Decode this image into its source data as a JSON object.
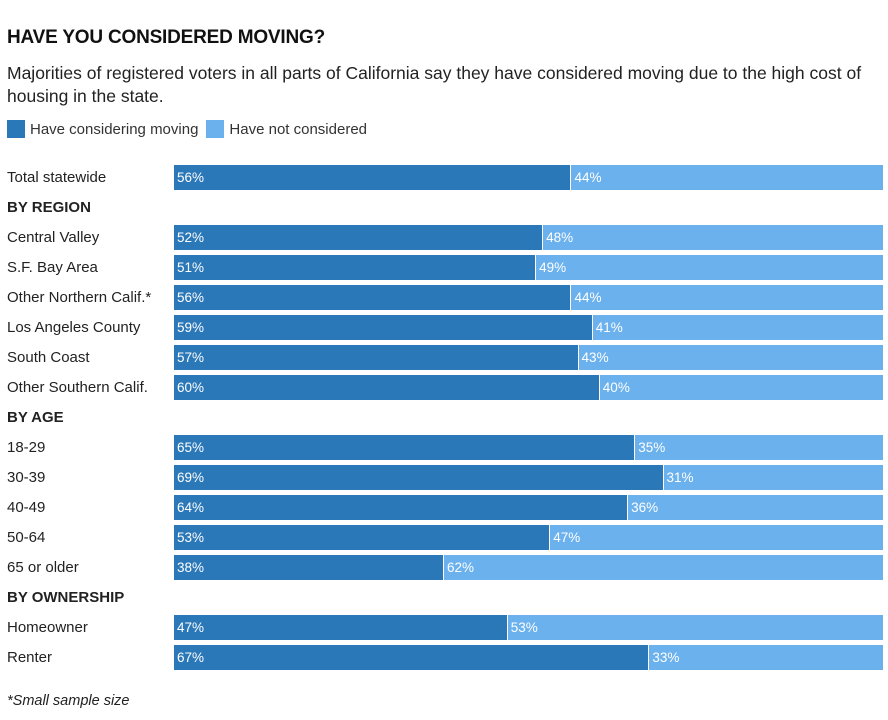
{
  "header": {
    "title": "HAVE YOU CONSIDERED MOVING?",
    "subtitle": "Majorities of registered voters in all parts of California say they have considered moving due to the high cost of housing in the state."
  },
  "legend": [
    {
      "label": "Have considering moving",
      "color": "#2b78b8"
    },
    {
      "label": "Have not considered",
      "color": "#6bb1ee"
    }
  ],
  "footnote": "*Small sample size",
  "chart_data": {
    "type": "bar",
    "orientation": "horizontal",
    "stacked": true,
    "value_suffix": "%",
    "xlim": [
      0,
      100
    ],
    "grid": false,
    "legend_position": "top-left",
    "series": [
      {
        "name": "Have considering moving",
        "color": "#2b78b8"
      },
      {
        "name": "Have not considered",
        "color": "#6bb1ee"
      }
    ],
    "rows": [
      {
        "kind": "bar",
        "label": "Total statewide",
        "values": [
          56,
          44
        ]
      },
      {
        "kind": "group",
        "label": "BY REGION"
      },
      {
        "kind": "bar",
        "label": "Central Valley",
        "values": [
          52,
          48
        ]
      },
      {
        "kind": "bar",
        "label": "S.F. Bay Area",
        "values": [
          51,
          49
        ]
      },
      {
        "kind": "bar",
        "label": "Other Northern Calif.*",
        "values": [
          56,
          44
        ]
      },
      {
        "kind": "bar",
        "label": "Los Angeles County",
        "values": [
          59,
          41
        ]
      },
      {
        "kind": "bar",
        "label": "South Coast",
        "values": [
          57,
          43
        ]
      },
      {
        "kind": "bar",
        "label": "Other Southern Calif.",
        "values": [
          60,
          40
        ]
      },
      {
        "kind": "group",
        "label": "BY AGE"
      },
      {
        "kind": "bar",
        "label": "18-29",
        "values": [
          65,
          35
        ]
      },
      {
        "kind": "bar",
        "label": "30-39",
        "values": [
          69,
          31
        ]
      },
      {
        "kind": "bar",
        "label": "40-49",
        "values": [
          64,
          36
        ]
      },
      {
        "kind": "bar",
        "label": "50-64",
        "values": [
          53,
          47
        ]
      },
      {
        "kind": "bar",
        "label": "65 or older",
        "values": [
          38,
          62
        ]
      },
      {
        "kind": "group",
        "label": "BY OWNERSHIP"
      },
      {
        "kind": "bar",
        "label": "Homeowner",
        "values": [
          47,
          53
        ]
      },
      {
        "kind": "bar",
        "label": "Renter",
        "values": [
          67,
          33
        ]
      }
    ]
  }
}
